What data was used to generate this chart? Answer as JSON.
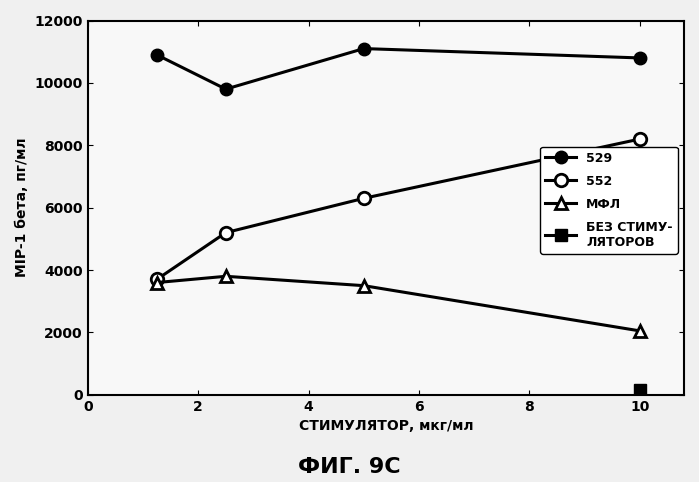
{
  "series": {
    "529": {
      "x": [
        1.25,
        2.5,
        5.0,
        10.0
      ],
      "y": [
        10900,
        9800,
        11100,
        10800
      ],
      "label": "529"
    },
    "552": {
      "x": [
        1.25,
        2.5,
        5.0,
        10.0
      ],
      "y": [
        3700,
        5200,
        6300,
        8200
      ],
      "label": "552"
    },
    "MFL": {
      "x": [
        1.25,
        2.5,
        5.0,
        10.0
      ],
      "y": [
        3600,
        3800,
        3500,
        2050
      ],
      "label": "МФЛ"
    },
    "nostim": {
      "x": [
        10.0
      ],
      "y": [
        150
      ],
      "label": "БЕЗ СТИМУ-\nЛЯТОРОВ"
    }
  },
  "xlabel": "СТИМУЛЯТОР, мкг/мл",
  "ylabel": "MIP-1 бета, пг/мл",
  "title": "ФИГ. 9C",
  "xlim": [
    0,
    10.8
  ],
  "ylim": [
    0,
    12000
  ],
  "yticks": [
    0,
    2000,
    4000,
    6000,
    8000,
    10000,
    12000
  ],
  "xticks": [
    0,
    2,
    4,
    6,
    8,
    10
  ],
  "line_color": "#000000",
  "background_color": "#f0f0f0",
  "plot_bg": "#f8f8f8",
  "markersize": 9,
  "linewidth": 2.2,
  "title_fontsize": 16,
  "axis_fontsize": 10,
  "tick_fontsize": 10,
  "legend_fontsize": 9
}
